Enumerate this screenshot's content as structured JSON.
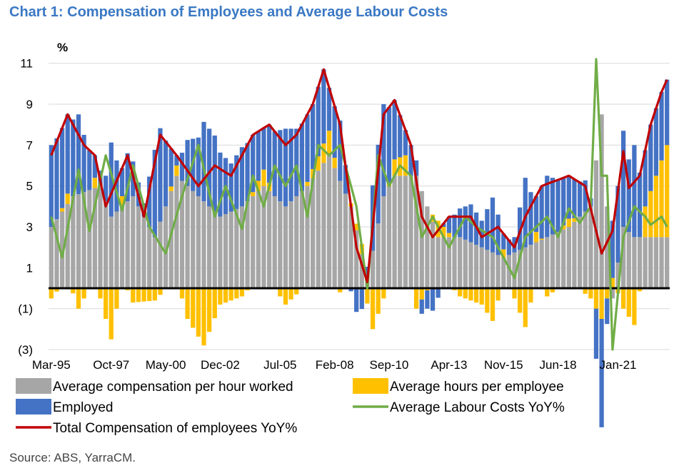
{
  "title": "Chart 1: Compensation of Employees and Average Labour Costs",
  "source": "Source: ABS, YarraCM.",
  "chart_data": {
    "type": "bar",
    "stacked": true,
    "y_unit": "%",
    "ylim": [
      -3,
      12
    ],
    "y_ticks": [
      11,
      9,
      7,
      5,
      3,
      1,
      -1,
      -3
    ],
    "y_tick_labels": [
      "11",
      "9",
      "7",
      "5",
      "3",
      "1",
      "(1)",
      "(3)"
    ],
    "x_start": "Mar-95",
    "x_end": "Jun-23",
    "x_tick_labels": [
      "Mar-95",
      "Oct-97",
      "May-00",
      "Dec-02",
      "Jul-05",
      "Feb-08",
      "Sep-10",
      "Apr-13",
      "Nov-15",
      "Jun-18",
      "Jan-21"
    ],
    "grid": "horizontal",
    "legend_position": "bottom",
    "colors": {
      "compensation": "#a6a6a6",
      "hours": "#ffc000",
      "employed": "#4472c4",
      "labour_costs": "#70ad47",
      "total": "#c00000",
      "zero_line": "#000000"
    },
    "legend": [
      {
        "key": "compensation",
        "label": "Average compensation per hour worked",
        "kind": "bar"
      },
      {
        "key": "hours",
        "label": "Average hours per employee",
        "kind": "bar"
      },
      {
        "key": "employed",
        "label": "Employed",
        "kind": "bar"
      },
      {
        "key": "labour_costs",
        "label": "Average Labour Costs YoY%",
        "kind": "line"
      },
      {
        "key": "total",
        "label": "Total Compensation of employees YoY%",
        "kind": "line"
      }
    ],
    "total_anchors": [
      [
        "Mar-95",
        6.5
      ],
      [
        "Dec-95",
        8.5
      ],
      [
        "Sep-96",
        7.0
      ],
      [
        "Mar-97",
        6.5
      ],
      [
        "Sep-97",
        4.0
      ],
      [
        "Sep-98",
        6.5
      ],
      [
        "Jun-99",
        3.5
      ],
      [
        "Mar-00",
        7.5
      ],
      [
        "Dec-00",
        6.5
      ],
      [
        "Dec-01",
        5.0
      ],
      [
        "Sep-02",
        6.0
      ],
      [
        "Jun-03",
        5.5
      ],
      [
        "Jun-04",
        7.5
      ],
      [
        "Mar-05",
        8.0
      ],
      [
        "Dec-05",
        7.0
      ],
      [
        "Jun-06",
        7.5
      ],
      [
        "Mar-07",
        9.0
      ],
      [
        "Sep-07",
        10.7
      ],
      [
        "Jun-08",
        8.0
      ],
      [
        "Mar-09",
        2.0
      ],
      [
        "Sep-09",
        0.3
      ],
      [
        "Jun-10",
        8.5
      ],
      [
        "Dec-10",
        9.2
      ],
      [
        "Sep-11",
        7.0
      ],
      [
        "Mar-12",
        3.5
      ],
      [
        "Sep-12",
        2.5
      ],
      [
        "Jun-13",
        3.5
      ],
      [
        "Jun-14",
        3.5
      ],
      [
        "Dec-14",
        2.5
      ],
      [
        "Sep-15",
        3.0
      ],
      [
        "Jun-16",
        2.0
      ],
      [
        "Dec-16",
        3.5
      ],
      [
        "Sep-17",
        5.0
      ],
      [
        "Jun-18",
        5.3
      ],
      [
        "Dec-18",
        5.5
      ],
      [
        "Sep-19",
        5.0
      ],
      [
        "Jun-20",
        1.7
      ],
      [
        "Dec-20",
        2.8
      ],
      [
        "Jun-21",
        6.7
      ],
      [
        "Sep-21",
        4.9
      ],
      [
        "Mar-22",
        5.5
      ],
      [
        "Sep-22",
        8.0
      ],
      [
        "Mar-23",
        9.6
      ],
      [
        "Jun-23",
        10.2
      ]
    ],
    "labour_costs_anchors": [
      [
        "Mar-95",
        3.5
      ],
      [
        "Sep-95",
        1.5
      ],
      [
        "Jun-96",
        5.8
      ],
      [
        "Dec-96",
        2.8
      ],
      [
        "Sep-97",
        6.5
      ],
      [
        "Jun-98",
        3.8
      ],
      [
        "Dec-98",
        6.0
      ],
      [
        "Sep-99",
        3.0
      ],
      [
        "Jun-00",
        1.7
      ],
      [
        "Mar-01",
        4.5
      ],
      [
        "Dec-01",
        7.0
      ],
      [
        "Sep-02",
        3.5
      ],
      [
        "Mar-03",
        5.0
      ],
      [
        "Dec-03",
        2.9
      ],
      [
        "Jun-04",
        5.5
      ],
      [
        "Dec-04",
        4.0
      ],
      [
        "Jun-05",
        6.0
      ],
      [
        "Dec-05",
        5.0
      ],
      [
        "Jun-06",
        6.0
      ],
      [
        "Dec-06",
        3.5
      ],
      [
        "Jun-07",
        7.0
      ],
      [
        "Dec-07",
        6.5
      ],
      [
        "Jun-08",
        7.0
      ],
      [
        "Mar-09",
        4.0
      ],
      [
        "Sep-09",
        0.0
      ],
      [
        "Mar-10",
        6.5
      ],
      [
        "Sep-10",
        5.0
      ],
      [
        "Mar-11",
        6.0
      ],
      [
        "Sep-11",
        5.5
      ],
      [
        "Mar-12",
        2.5
      ],
      [
        "Sep-12",
        3.5
      ],
      [
        "Jun-13",
        2.0
      ],
      [
        "Mar-14",
        3.5
      ],
      [
        "Sep-14",
        3.0
      ],
      [
        "Jun-15",
        2.5
      ],
      [
        "Dec-15",
        1.5
      ],
      [
        "Jun-16",
        0.5
      ],
      [
        "Dec-16",
        2.5
      ],
      [
        "Jun-17",
        3.0
      ],
      [
        "Dec-17",
        3.5
      ],
      [
        "Jun-18",
        2.5
      ],
      [
        "Dec-18",
        3.9
      ],
      [
        "Jun-19",
        3.2
      ],
      [
        "Dec-19",
        4.0
      ],
      [
        "Mar-20",
        11.2
      ],
      [
        "Jun-20",
        5.5
      ],
      [
        "Sep-20",
        5.5
      ],
      [
        "Dec-20",
        -3.0
      ],
      [
        "Jun-21",
        2.5
      ],
      [
        "Dec-21",
        4.0
      ],
      [
        "Jun-22",
        3.5
      ],
      [
        "Sep-22",
        3.1
      ],
      [
        "Mar-23",
        3.5
      ],
      [
        "Jun-23",
        3.0
      ]
    ],
    "compensation_anchors": [
      [
        "Mar-95",
        3.0
      ],
      [
        "Mar-96",
        4.5
      ],
      [
        "Jun-97",
        5.0
      ],
      [
        "Dec-97",
        3.5
      ],
      [
        "Dec-98",
        4.5
      ],
      [
        "Dec-99",
        2.5
      ],
      [
        "Dec-00",
        5.5
      ],
      [
        "Dec-01",
        4.5
      ],
      [
        "Dec-02",
        3.5
      ],
      [
        "Dec-03",
        4.0
      ],
      [
        "Dec-04",
        5.0
      ],
      [
        "Dec-05",
        4.0
      ],
      [
        "Dec-06",
        5.0
      ],
      [
        "Dec-07",
        6.5
      ],
      [
        "Dec-08",
        4.0
      ],
      [
        "Sep-09",
        0.5
      ],
      [
        "Jun-10",
        4.5
      ],
      [
        "Dec-10",
        5.5
      ],
      [
        "Dec-11",
        5.5
      ],
      [
        "Dec-12",
        2.5
      ],
      [
        "Dec-13",
        2.5
      ],
      [
        "Dec-14",
        2.0
      ],
      [
        "Dec-15",
        1.5
      ],
      [
        "Dec-16",
        2.0
      ],
      [
        "Dec-17",
        2.5
      ],
      [
        "Dec-18",
        3.0
      ],
      [
        "Dec-19",
        4.0
      ],
      [
        "Jun-20",
        8.5
      ],
      [
        "Dec-20",
        -0.5
      ],
      [
        "Jun-21",
        3.0
      ],
      [
        "Dec-21",
        2.5
      ],
      [
        "Dec-22",
        2.5
      ],
      [
        "Jun-23",
        2.5
      ]
    ],
    "hours_anchors": [
      [
        "Mar-95",
        -0.5
      ],
      [
        "Dec-95",
        0.5
      ],
      [
        "Jun-96",
        -1.0
      ],
      [
        "Mar-97",
        0.5
      ],
      [
        "Dec-97",
        -2.5
      ],
      [
        "Jun-98",
        0.5
      ],
      [
        "Dec-98",
        -0.7
      ],
      [
        "Dec-99",
        -0.6
      ],
      [
        "Dec-00",
        0.5
      ],
      [
        "Jun-01",
        -1.5
      ],
      [
        "Mar-02",
        -2.8
      ],
      [
        "Dec-02",
        -0.8
      ],
      [
        "Dec-03",
        -0.4
      ],
      [
        "Dec-04",
        0.8
      ],
      [
        "Dec-05",
        -0.8
      ],
      [
        "Dec-06",
        0.2
      ],
      [
        "Dec-07",
        1.2
      ],
      [
        "Jun-08",
        -0.2
      ],
      [
        "Jun-09",
        0.5
      ],
      [
        "Dec-09",
        -2.0
      ],
      [
        "Jun-10",
        -0.5
      ],
      [
        "Dec-10",
        0.8
      ],
      [
        "Jun-11",
        1.0
      ],
      [
        "Dec-11",
        -1.0
      ],
      [
        "Dec-12",
        0.8
      ],
      [
        "Dec-13",
        -0.4
      ],
      [
        "Dec-14",
        -0.8
      ],
      [
        "Jun-15",
        -1.6
      ],
      [
        "Dec-15",
        0.4
      ],
      [
        "Jun-16",
        -0.5
      ],
      [
        "Dec-16",
        -1.9
      ],
      [
        "Jun-17",
        0.5
      ],
      [
        "Dec-17",
        -0.4
      ],
      [
        "Dec-18",
        0.4
      ],
      [
        "Dec-19",
        -0.5
      ],
      [
        "Jun-20",
        -1.5
      ],
      [
        "Dec-20",
        0.5
      ],
      [
        "Jun-21",
        -1.0
      ],
      [
        "Dec-21",
        -1.8
      ],
      [
        "Jun-22",
        1.5
      ],
      [
        "Dec-22",
        3.0
      ],
      [
        "Jun-23",
        4.5
      ]
    ]
  }
}
